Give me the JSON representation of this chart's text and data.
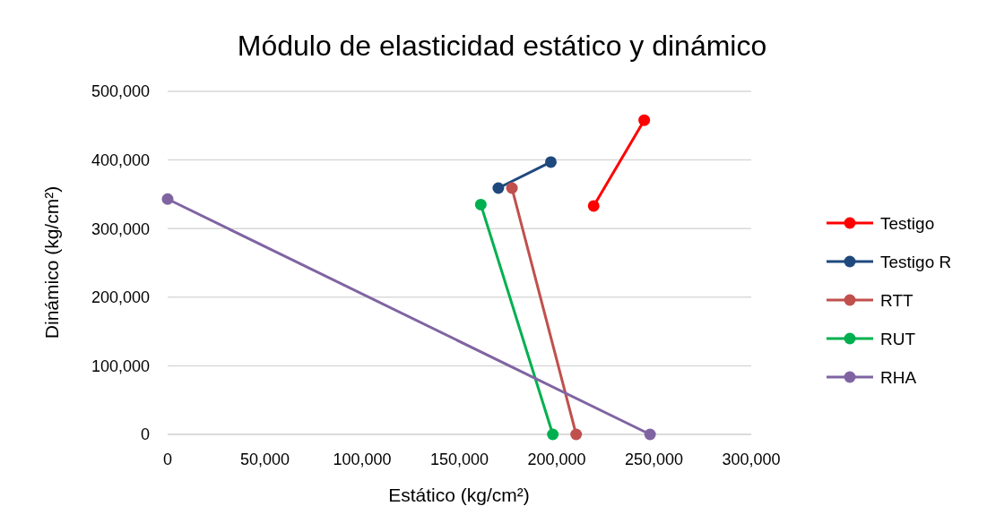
{
  "chart_data": {
    "type": "line",
    "title": "Módulo de elasticidad estático y dinámico",
    "xlabel": "Estático (kg/cm²)",
    "ylabel": "Dinámico (kg/cm²)",
    "xlim": [
      0,
      300000
    ],
    "xticks": [
      0,
      {
        "value": 50000,
        "label": "50,000"
      },
      {
        "value": 100000,
        "label": "100,000"
      },
      {
        "value": 150000,
        "label": "150,000"
      },
      {
        "value": 200000,
        "label": "200,000"
      },
      {
        "value": 250000,
        "label": "250,000"
      },
      {
        "value": 300000,
        "label": "300,000"
      }
    ],
    "ylim": [
      0,
      500000
    ],
    "yticks": [
      0,
      {
        "value": 100000,
        "label": "100,000"
      },
      {
        "value": 200000,
        "label": "200,000"
      },
      {
        "value": 300000,
        "label": "300,000"
      },
      {
        "value": 400000,
        "label": "400,000"
      },
      {
        "value": 500000,
        "label": "500,000"
      }
    ],
    "grid": "y",
    "legend": "right",
    "marker": "circle",
    "line_style": "solid",
    "series": [
      {
        "name": "Testigo",
        "color": "#ff0000",
        "x": [
          219000,
          245000
        ],
        "values": [
          333000,
          458000
        ]
      },
      {
        "name": "Testigo R",
        "color": "#1f497d",
        "x": [
          170000,
          197000
        ],
        "values": [
          359000,
          397000
        ]
      },
      {
        "name": "RTT",
        "color": "#c0504d",
        "x": [
          177000,
          210000
        ],
        "values": [
          359000,
          0
        ]
      },
      {
        "name": "RUT",
        "color": "#00b050",
        "x": [
          161000,
          198000
        ],
        "values": [
          335000,
          0
        ]
      },
      {
        "name": "RHA",
        "color": "#8064a2",
        "x": [
          0,
          248000
        ],
        "values": [
          343000,
          0
        ]
      }
    ]
  }
}
